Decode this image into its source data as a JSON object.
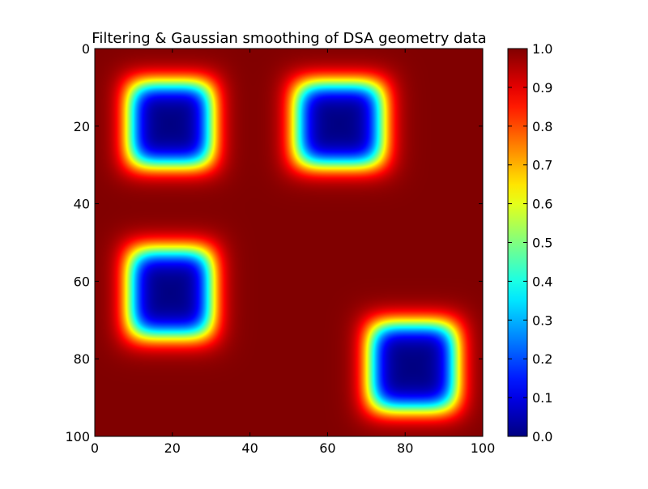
{
  "chart_data": {
    "type": "heatmap",
    "title": "Filtering & Gaussian smoothing of DSA geometry data",
    "xlabel": "",
    "ylabel": "",
    "xlim": [
      0,
      100
    ],
    "ylim": [
      100,
      0
    ],
    "x_ticks": [
      "0",
      "20",
      "40",
      "60",
      "80",
      "100"
    ],
    "y_ticks": [
      "0",
      "20",
      "40",
      "60",
      "80",
      "100"
    ],
    "colormap": "jet",
    "background_value": 1.0,
    "features": [
      {
        "shape": "rounded-square",
        "x_range": [
          9,
          30
        ],
        "y_range": [
          9,
          30
        ],
        "value": 0.0
      },
      {
        "shape": "rounded-square",
        "x_range": [
          52,
          74
        ],
        "y_range": [
          9,
          30
        ],
        "value": 0.0
      },
      {
        "shape": "rounded-square",
        "x_range": [
          9,
          30
        ],
        "y_range": [
          52,
          74
        ],
        "value": 0.0
      },
      {
        "shape": "rounded-square",
        "x_range": [
          71,
          93
        ],
        "y_range": [
          71,
          93
        ],
        "value": 0.0
      }
    ],
    "colorbar": {
      "range": [
        0.0,
        1.0
      ],
      "ticks": [
        "0.0",
        "0.1",
        "0.2",
        "0.3",
        "0.4",
        "0.5",
        "0.6",
        "0.7",
        "0.8",
        "0.9",
        "1.0"
      ]
    }
  }
}
